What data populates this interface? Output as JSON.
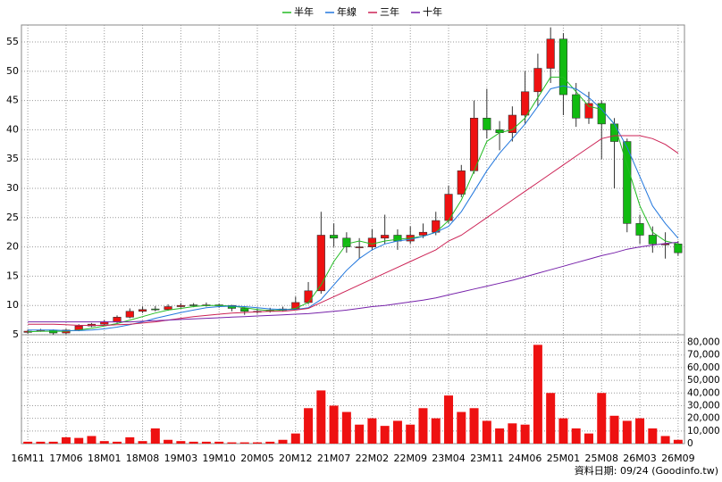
{
  "chart_data": [
    {
      "type": "candlestick",
      "categories": [
        "16M11",
        null,
        null,
        "17M06",
        null,
        null,
        "18M01",
        null,
        null,
        "18M08",
        null,
        null,
        "19M03",
        null,
        null,
        "19M10",
        null,
        null,
        "20M05",
        null,
        null,
        "20M12",
        null,
        null,
        "21M07",
        null,
        null,
        "22M02",
        null,
        null,
        "22M09",
        null,
        null,
        "23M04",
        null,
        null,
        "23M11",
        null,
        null,
        "24M06",
        null,
        null,
        "25M01",
        null,
        null,
        "25M08",
        null,
        null,
        "26M03",
        null,
        null,
        "26M09"
      ],
      "open": [
        5.4,
        5.6,
        5.8,
        5.3,
        5.8,
        6.5,
        6.8,
        7.2,
        8.0,
        9.0,
        9.4,
        9.3,
        9.8,
        10.1,
        10.0,
        10.1,
        10.0,
        9.5,
        9.0,
        9.0,
        9.2,
        9.4,
        10.5,
        12.5,
        22.0,
        21.5,
        20.0,
        20.0,
        21.5,
        22.0,
        21.0,
        22.0,
        22.5,
        24.5,
        29.0,
        33.0,
        42.0,
        40.0,
        39.5,
        42.5,
        46.5,
        50.5,
        55.5,
        46.0,
        42.0,
        44.5,
        41.0,
        38.0,
        24.0,
        22.0,
        20.5,
        20.5
      ],
      "high": [
        5.9,
        6.0,
        5.9,
        6.0,
        6.8,
        7.0,
        7.5,
        8.3,
        9.5,
        9.8,
        9.9,
        10.2,
        10.4,
        10.4,
        10.5,
        10.3,
        10.1,
        9.7,
        9.5,
        9.6,
        9.8,
        11.5,
        14.0,
        26.0,
        24.0,
        22.5,
        21.5,
        23.0,
        25.5,
        23.0,
        23.5,
        24.0,
        26.0,
        30.5,
        34.0,
        45.0,
        47.0,
        41.5,
        44.0,
        50.0,
        53.0,
        57.5,
        56.5,
        48.0,
        46.5,
        45.0,
        42.0,
        38.5,
        25.5,
        23.5,
        22.5,
        21.0
      ],
      "low": [
        5.2,
        5.5,
        5.0,
        5.1,
        5.6,
        6.3,
        6.6,
        7.0,
        7.8,
        8.7,
        9.0,
        9.1,
        9.6,
        9.7,
        9.8,
        9.6,
        9.0,
        8.4,
        8.6,
        8.8,
        9.0,
        9.3,
        10.2,
        12.0,
        20.0,
        19.0,
        18.0,
        19.5,
        20.5,
        19.5,
        20.5,
        21.5,
        22.0,
        24.0,
        28.5,
        32.5,
        38.5,
        36.5,
        38.0,
        41.0,
        44.0,
        48.0,
        42.5,
        40.5,
        41.0,
        35.0,
        30.0,
        22.5,
        20.5,
        19.0,
        18.0,
        18.5
      ],
      "close": [
        5.6,
        5.8,
        5.3,
        5.8,
        6.5,
        6.8,
        7.2,
        8.0,
        9.0,
        9.3,
        9.3,
        9.8,
        10.0,
        10.0,
        10.1,
        10.0,
        9.5,
        9.0,
        9.0,
        9.2,
        9.4,
        10.5,
        12.5,
        22.0,
        21.5,
        20.0,
        20.0,
        21.5,
        22.0,
        21.0,
        22.0,
        22.5,
        24.5,
        29.0,
        33.0,
        42.0,
        40.0,
        39.5,
        42.5,
        46.5,
        50.5,
        55.5,
        46.0,
        42.0,
        44.5,
        41.0,
        38.0,
        24.0,
        22.0,
        20.5,
        20.5,
        19.0
      ],
      "up_color": "#ee1111",
      "down_color": "#11bb11",
      "series": [
        {
          "name": "半年",
          "color": "#22bb22",
          "values": [
            5.5,
            5.6,
            5.6,
            5.6,
            5.8,
            6.1,
            6.5,
            6.9,
            7.5,
            8.1,
            8.7,
            9.2,
            9.5,
            9.8,
            10.0,
            10.0,
            9.9,
            9.6,
            9.3,
            9.1,
            9.2,
            9.5,
            10.5,
            13.5,
            17.5,
            20.5,
            21.0,
            20.5,
            21.0,
            21.3,
            21.5,
            21.8,
            22.5,
            24.5,
            28.0,
            33.0,
            38.0,
            39.5,
            40.0,
            42.0,
            45.5,
            49.0,
            49.0,
            46.5,
            44.0,
            43.5,
            41.0,
            34.0,
            27.0,
            22.5,
            21.0,
            20.5
          ]
        },
        {
          "name": "年線",
          "color": "#2277dd",
          "values": [
            5.8,
            5.8,
            5.8,
            5.7,
            5.7,
            5.8,
            6.0,
            6.3,
            6.7,
            7.2,
            7.8,
            8.3,
            8.8,
            9.2,
            9.6,
            9.8,
            9.9,
            9.8,
            9.6,
            9.4,
            9.3,
            9.3,
            9.6,
            11.0,
            13.5,
            16.0,
            18.0,
            19.5,
            20.5,
            21.0,
            21.3,
            21.8,
            22.5,
            23.5,
            26.0,
            29.5,
            33.0,
            36.0,
            38.5,
            41.0,
            44.0,
            47.0,
            47.5,
            47.0,
            45.5,
            43.5,
            41.0,
            37.0,
            32.0,
            27.0,
            24.0,
            21.5
          ]
        },
        {
          "name": "三年",
          "color": "#cc2255",
          "values": [
            6.8,
            6.8,
            6.8,
            6.7,
            6.6,
            6.6,
            6.6,
            6.7,
            6.8,
            7.0,
            7.2,
            7.5,
            7.8,
            8.1,
            8.3,
            8.5,
            8.7,
            8.8,
            8.9,
            9.0,
            9.0,
            9.2,
            9.5,
            10.5,
            11.5,
            12.5,
            13.5,
            14.5,
            15.5,
            16.5,
            17.5,
            18.5,
            19.5,
            21.0,
            22.0,
            23.5,
            25.0,
            26.5,
            28.0,
            29.5,
            31.0,
            32.5,
            34.0,
            35.5,
            37.0,
            38.5,
            39.0,
            39.0,
            39.0,
            38.5,
            37.5,
            36.0
          ]
        },
        {
          "name": "十年",
          "color": "#7722aa",
          "values": [
            7.2,
            7.2,
            7.2,
            7.2,
            7.2,
            7.2,
            7.2,
            7.2,
            7.2,
            7.3,
            7.4,
            7.5,
            7.6,
            7.7,
            7.8,
            7.9,
            8.0,
            8.1,
            8.2,
            8.3,
            8.4,
            8.5,
            8.6,
            8.8,
            9.0,
            9.2,
            9.5,
            9.8,
            10.0,
            10.3,
            10.6,
            10.9,
            11.3,
            11.8,
            12.3,
            12.8,
            13.3,
            13.8,
            14.3,
            14.9,
            15.5,
            16.1,
            16.7,
            17.3,
            17.9,
            18.5,
            19.0,
            19.6,
            20.0,
            20.3,
            20.6,
            20.8
          ]
        }
      ],
      "ylim": [
        5,
        57.9
      ],
      "yticks": [
        5,
        10,
        15,
        20,
        25,
        30,
        35,
        40,
        45,
        50,
        55
      ],
      "grid": true,
      "legend": "top"
    },
    {
      "type": "bar",
      "values": [
        1500,
        1500,
        1500,
        5000,
        4500,
        6000,
        2000,
        1500,
        5000,
        2000,
        12000,
        3000,
        2000,
        1500,
        1500,
        1500,
        1000,
        1000,
        1000,
        1500,
        3000,
        8000,
        28000,
        42000,
        30000,
        25000,
        15000,
        20000,
        14000,
        18000,
        15000,
        28000,
        20000,
        38000,
        25000,
        28000,
        18000,
        12000,
        16000,
        15000,
        78000,
        40000,
        20000,
        12000,
        8000,
        40000,
        22000,
        18000,
        20000,
        12000,
        6000,
        3000
      ],
      "color": "#ee1111",
      "ylim": [
        0,
        86000
      ],
      "yticks": [
        0,
        {
          "value": 10000,
          "label": "10,000"
        },
        {
          "value": 20000,
          "label": "20,000"
        },
        {
          "value": 30000,
          "label": "30,000"
        },
        {
          "value": 40000,
          "label": "40,000"
        },
        {
          "value": 50000,
          "label": "50,000"
        },
        {
          "value": 60000,
          "label": "60,000"
        },
        {
          "value": 70000,
          "label": "70,000"
        },
        {
          "value": 80000,
          "label": "80,000"
        }
      ],
      "grid": true
    }
  ],
  "footer": "資料日期: 09/24 (Goodinfo.tw)"
}
